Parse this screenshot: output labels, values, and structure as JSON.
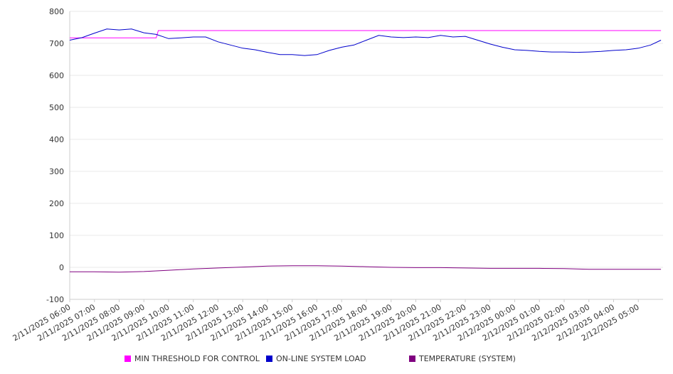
{
  "chart_data": {
    "type": "line",
    "title": "",
    "xlabel": "",
    "ylabel": "",
    "ylim": [
      -100,
      800
    ],
    "yticks": [
      -100,
      0,
      100,
      200,
      300,
      400,
      500,
      600,
      700,
      800
    ],
    "x_tick_labels": [
      "2/11/2025 06:00",
      "2/11/2025 07:00",
      "2/11/2025 08:00",
      "2/11/2025 09:00",
      "2/11/2025 10:00",
      "2/11/2025 11:00",
      "2/11/2025 12:00",
      "2/11/2025 13:00",
      "2/11/2025 14:00",
      "2/11/2025 15:00",
      "2/11/2025 16:00",
      "2/11/2025 17:00",
      "2/11/2025 18:00",
      "2/11/2025 19:00",
      "2/11/2025 20:00",
      "2/11/2025 21:00",
      "2/11/2025 22:00",
      "2/11/2025 23:00",
      "2/12/2025 00:00",
      "2/12/2025 01:00",
      "2/12/2025 02:00",
      "2/12/2025 03:00",
      "2/12/2025 04:00",
      "2/12/2025 05:00"
    ],
    "grid": true,
    "legend_position": "bottom",
    "series": [
      {
        "name": "MIN THRESHOLD FOR CONTROL",
        "color": "#ff00ff",
        "x": [
          "2/11/2025 06:00",
          "2/11/2025 09:30",
          "2/11/2025 09:35",
          "2/12/2025 05:55"
        ],
        "values": [
          717,
          717,
          740,
          740
        ]
      },
      {
        "name": "ON-LINE SYSTEM LOAD",
        "color": "#0000cc",
        "x": [
          "2/11/2025 06:00",
          "2/11/2025 06:30",
          "2/11/2025 07:00",
          "2/11/2025 07:30",
          "2/11/2025 08:00",
          "2/11/2025 08:30",
          "2/11/2025 09:00",
          "2/11/2025 09:30",
          "2/11/2025 10:00",
          "2/11/2025 10:30",
          "2/11/2025 11:00",
          "2/11/2025 11:30",
          "2/11/2025 12:00",
          "2/11/2025 12:30",
          "2/11/2025 13:00",
          "2/11/2025 13:30",
          "2/11/2025 14:00",
          "2/11/2025 14:30",
          "2/11/2025 15:00",
          "2/11/2025 15:30",
          "2/11/2025 16:00",
          "2/11/2025 16:30",
          "2/11/2025 17:00",
          "2/11/2025 17:30",
          "2/11/2025 18:00",
          "2/11/2025 18:30",
          "2/11/2025 19:00",
          "2/11/2025 19:30",
          "2/11/2025 20:00",
          "2/11/2025 20:30",
          "2/11/2025 21:00",
          "2/11/2025 21:30",
          "2/11/2025 22:00",
          "2/11/2025 22:30",
          "2/11/2025 23:00",
          "2/11/2025 23:30",
          "2/12/2025 00:00",
          "2/12/2025 00:30",
          "2/12/2025 01:00",
          "2/12/2025 01:30",
          "2/12/2025 02:00",
          "2/12/2025 02:30",
          "2/12/2025 03:00",
          "2/12/2025 03:30",
          "2/12/2025 04:00",
          "2/12/2025 04:30",
          "2/12/2025 05:00",
          "2/12/2025 05:30",
          "2/12/2025 05:55"
        ],
        "values": [
          710,
          718,
          732,
          745,
          742,
          745,
          733,
          728,
          715,
          717,
          720,
          720,
          705,
          695,
          685,
          680,
          672,
          665,
          665,
          662,
          665,
          678,
          688,
          695,
          710,
          725,
          720,
          718,
          720,
          718,
          725,
          720,
          722,
          710,
          698,
          688,
          680,
          678,
          675,
          673,
          673,
          672,
          673,
          675,
          678,
          680,
          685,
          695,
          710
        ]
      },
      {
        "name": "TEMPERATURE (SYSTEM)",
        "color": "#800080",
        "x": [
          "2/11/2025 06:00",
          "2/11/2025 07:00",
          "2/11/2025 08:00",
          "2/11/2025 09:00",
          "2/11/2025 10:00",
          "2/11/2025 11:00",
          "2/11/2025 12:00",
          "2/11/2025 13:00",
          "2/11/2025 14:00",
          "2/11/2025 15:00",
          "2/11/2025 16:00",
          "2/11/2025 17:00",
          "2/11/2025 18:00",
          "2/11/2025 19:00",
          "2/11/2025 20:00",
          "2/11/2025 21:00",
          "2/11/2025 22:00",
          "2/11/2025 23:00",
          "2/12/2025 00:00",
          "2/12/2025 01:00",
          "2/12/2025 02:00",
          "2/12/2025 03:00",
          "2/12/2025 04:00",
          "2/12/2025 05:00",
          "2/12/2025 05:55"
        ],
        "values": [
          -14,
          -14,
          -15,
          -13,
          -9,
          -5,
          -2,
          1,
          4,
          5,
          5,
          4,
          2,
          0,
          -1,
          -1,
          -2,
          -3,
          -3,
          -3,
          -4,
          -6,
          -6,
          -6,
          -6
        ]
      }
    ]
  }
}
